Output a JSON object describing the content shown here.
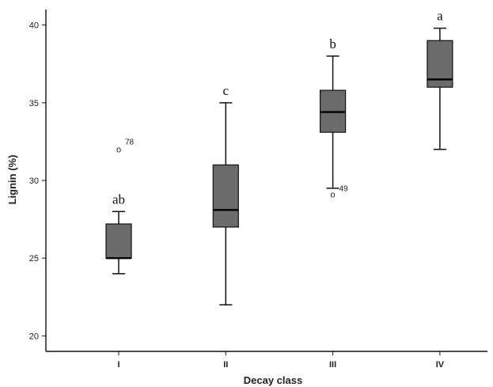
{
  "chart_data": {
    "type": "box",
    "xlabel": "Decay class",
    "ylabel": "Lignin (%)",
    "ylim": [
      19,
      41
    ],
    "yticks": [
      20,
      25,
      30,
      35,
      40
    ],
    "categories": [
      "I",
      "II",
      "III",
      "IV"
    ],
    "boxes": [
      {
        "category": "I",
        "whisker_low": 24,
        "q1": 25,
        "median": 25,
        "q3": 27.2,
        "whisker_high": 28,
        "letter": "ab",
        "outliers": [
          {
            "value": 32,
            "label": "78",
            "label_side": "right"
          }
        ]
      },
      {
        "category": "II",
        "whisker_low": 22,
        "q1": 27,
        "median": 28.1,
        "q3": 31,
        "whisker_high": 35,
        "letter": "c",
        "outliers": []
      },
      {
        "category": "III",
        "whisker_low": 29.5,
        "q1": 33.1,
        "median": 34.4,
        "q3": 35.8,
        "whisker_high": 38,
        "letter": "b",
        "outliers": [
          {
            "value": 29.1,
            "label": "49",
            "label_side": "above-right"
          }
        ]
      },
      {
        "category": "IV",
        "whisker_low": 32,
        "q1": 36,
        "median": 36.5,
        "q3": 39,
        "whisker_high": 39.8,
        "letter": "a",
        "outliers": []
      }
    ],
    "box_fill": "#6b6b6b",
    "line_color": "#111111",
    "outlier_symbol": "o"
  }
}
